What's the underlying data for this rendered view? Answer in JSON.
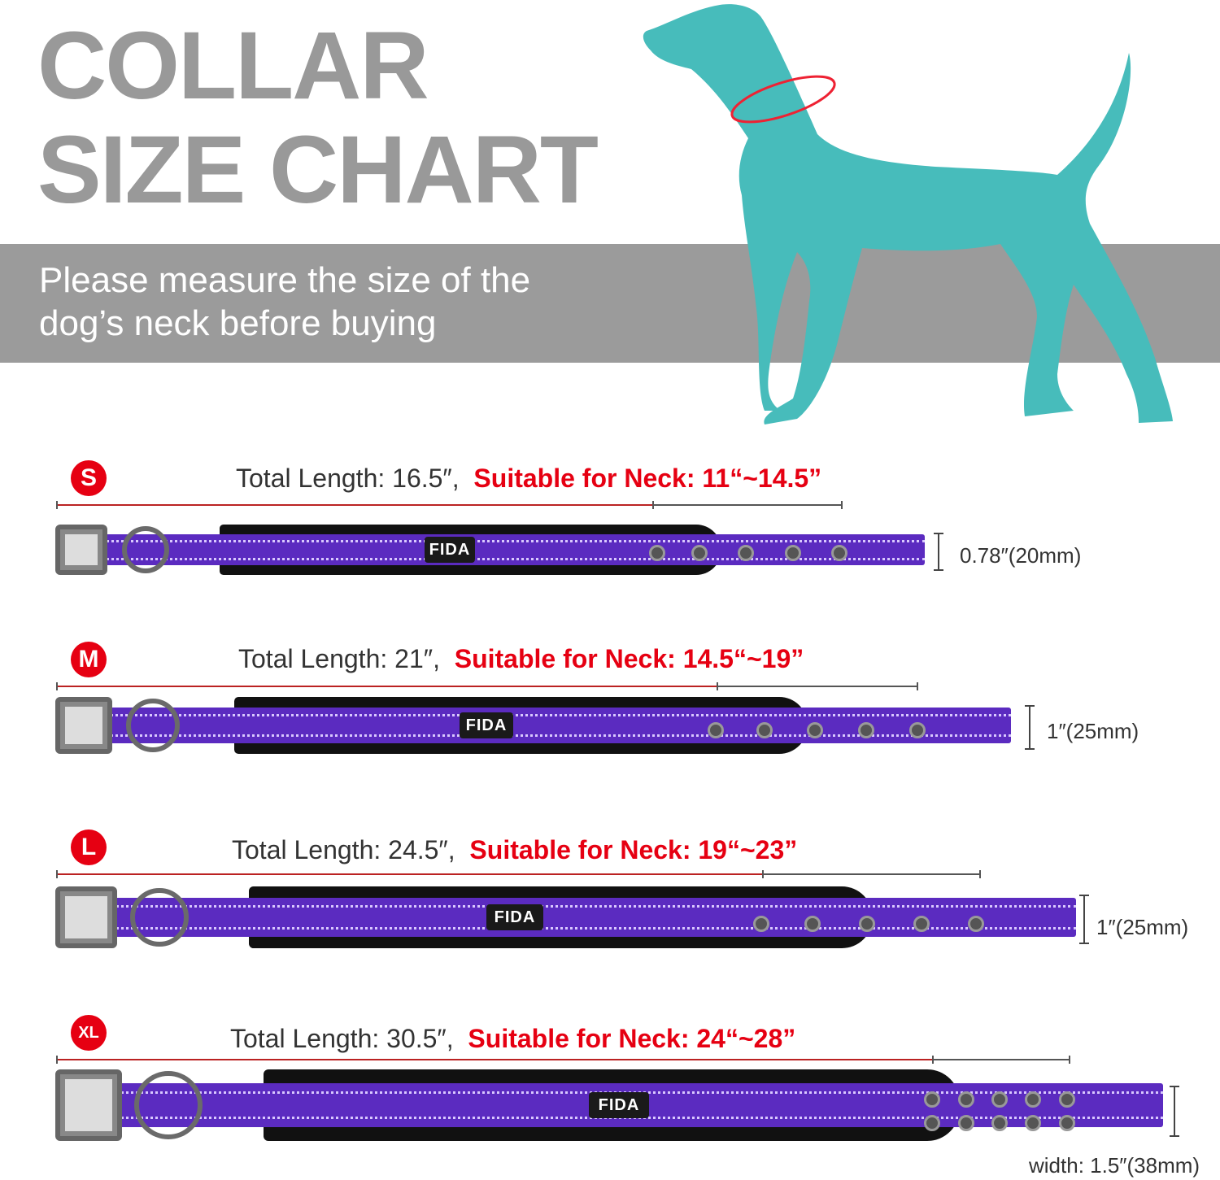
{
  "title": {
    "line1": "COLLAR",
    "line2": "SIZE CHART"
  },
  "subtitle": {
    "line1": "Please measure the size of the",
    "line2": "dog’s neck before buying"
  },
  "colors": {
    "title_gray": "#999999",
    "band_gray": "#9b9b9b",
    "dog_teal": "#47bcbb",
    "accent_red": "#e60012",
    "collar_purple": "#5b2bc0"
  },
  "brand": "FIDA",
  "sizes": [
    {
      "badge": "S",
      "total_length": "Total Length: 16.5″,",
      "neck": "Suitable for Neck: 11“~14.5”",
      "width": "0.78″(20mm)"
    },
    {
      "badge": "M",
      "total_length": "Total Length: 21″,",
      "neck": "Suitable for Neck: 14.5“~19”",
      "width": "1″(25mm)"
    },
    {
      "badge": "L",
      "total_length": "Total Length: 24.5″,",
      "neck": "Suitable for Neck: 19“~23”",
      "width": "1″(25mm)"
    },
    {
      "badge": "XL",
      "total_length": "Total Length: 30.5″,",
      "neck": "Suitable for Neck: 24“~28”",
      "width": "width: 1.5″(38mm)"
    }
  ]
}
